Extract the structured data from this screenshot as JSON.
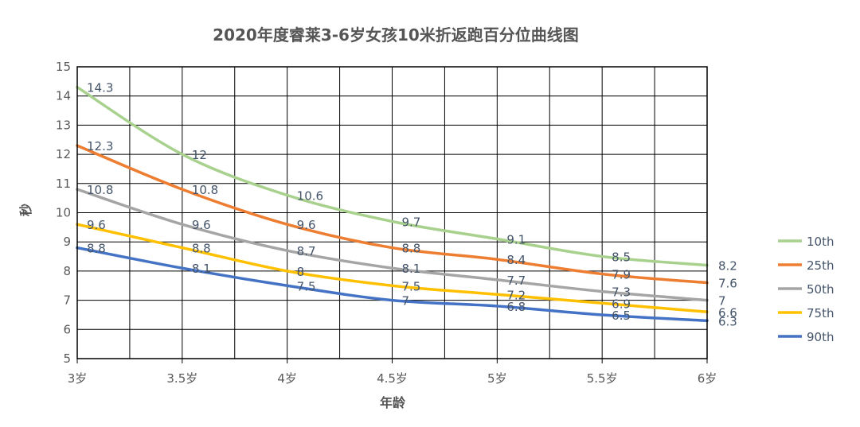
{
  "chart_data": {
    "type": "line",
    "title": "2020年度睿莱3-6岁女孩10米折返跑百分位曲线图",
    "xlabel": "年龄",
    "ylabel": "秒",
    "x": [
      3,
      3.5,
      4,
      4.5,
      5,
      5.5,
      6
    ],
    "x_tick_labels": [
      "3岁",
      "3.5岁",
      "4岁",
      "4.5岁",
      "5岁",
      "5.5岁",
      "6岁"
    ],
    "ylim": [
      5,
      15
    ],
    "y_ticks": [
      5,
      6,
      7,
      8,
      9,
      10,
      11,
      12,
      13,
      14,
      15
    ],
    "grid": true,
    "legend_position": "right",
    "series": [
      {
        "name": "10th",
        "color": "#A9D18E",
        "values": [
          14.3,
          12,
          10.6,
          9.7,
          9.1,
          8.5,
          8.2
        ]
      },
      {
        "name": "25th",
        "color": "#ED7D31",
        "values": [
          12.3,
          10.8,
          9.6,
          8.8,
          8.4,
          7.9,
          7.6
        ]
      },
      {
        "name": "50th",
        "color": "#A5A5A5",
        "values": [
          10.8,
          9.6,
          8.7,
          8.1,
          7.7,
          7.3,
          7
        ]
      },
      {
        "name": "75th",
        "color": "#FFC000",
        "values": [
          9.6,
          8.8,
          8,
          7.5,
          7.2,
          6.9,
          6.6
        ]
      },
      {
        "name": "90th",
        "color": "#4472C4",
        "values": [
          8.8,
          8.1,
          7.5,
          7,
          6.8,
          6.5,
          6.3
        ]
      }
    ]
  }
}
